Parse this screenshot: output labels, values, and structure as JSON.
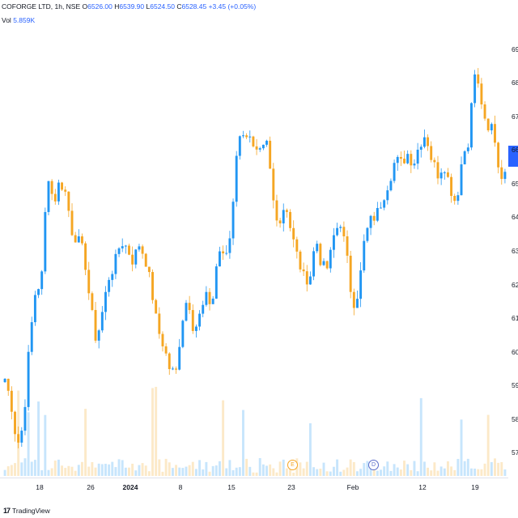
{
  "legend": {
    "symbol": "COFORGE LTD, 1h, NSE",
    "o_label": "O",
    "o_value": "6526.00",
    "h_label": "H",
    "h_value": "6539.90",
    "l_label": "L",
    "l_value": "6524.50",
    "c_label": "C",
    "c_value": "6528.45",
    "change": "+3.45 (+0.05%)",
    "vol_label": "Vol",
    "vol_value": "5.859K"
  },
  "branding": {
    "logo_mark": "17",
    "logo_text": "TradingView"
  },
  "events": {
    "earnings_icon": "E",
    "dividend_icon": "D"
  },
  "colors": {
    "up": "#2196f3",
    "down": "#f5a623",
    "accent": "#2962ff"
  },
  "chart_data": {
    "type": "candlestick",
    "title": "COFORGE LTD, 1h, NSE",
    "x_tick_labels": [
      "18",
      "26",
      "2024",
      "8",
      "15",
      "23",
      "Feb",
      "12",
      "19"
    ],
    "y_tick_labels": [
      "69",
      "68",
      "67",
      "66",
      "65",
      "64",
      "63",
      "62",
      "61",
      "60",
      "59",
      "58",
      "57"
    ],
    "ylim": [
      5650,
      6950
    ],
    "y_ticks": [
      6900,
      6800,
      6700,
      6600,
      6500,
      6400,
      6300,
      6200,
      6100,
      6000,
      5900,
      5800,
      5700
    ],
    "grid": false,
    "legend_position": "top-left",
    "close_series": [
      5920,
      5850,
      5720,
      5780,
      6020,
      6180,
      6210,
      6540,
      6440,
      6510,
      6470,
      6360,
      6330,
      6290,
      6140,
      6030,
      6120,
      6220,
      6260,
      6330,
      6310,
      6270,
      6320,
      6280,
      6190,
      6070,
      6020,
      5950,
      5930,
      6090,
      6170,
      6060,
      6110,
      6160,
      6140,
      6310,
      6270,
      6350,
      6600,
      6660,
      6640,
      6580,
      6590,
      6620,
      6450,
      6380,
      6450,
      6350,
      6280,
      6220,
      6220,
      6340,
      6250,
      6250,
      6350,
      6390,
      6290,
      6140,
      6180,
      6340,
      6390,
      6410,
      6460,
      6510,
      6570,
      6560,
      6590,
      6560,
      6620,
      6650,
      6570,
      6530,
      6560,
      6490,
      6440,
      6580,
      6630,
      6830,
      6760,
      6640,
      6680,
      6540,
      6520
    ]
  }
}
